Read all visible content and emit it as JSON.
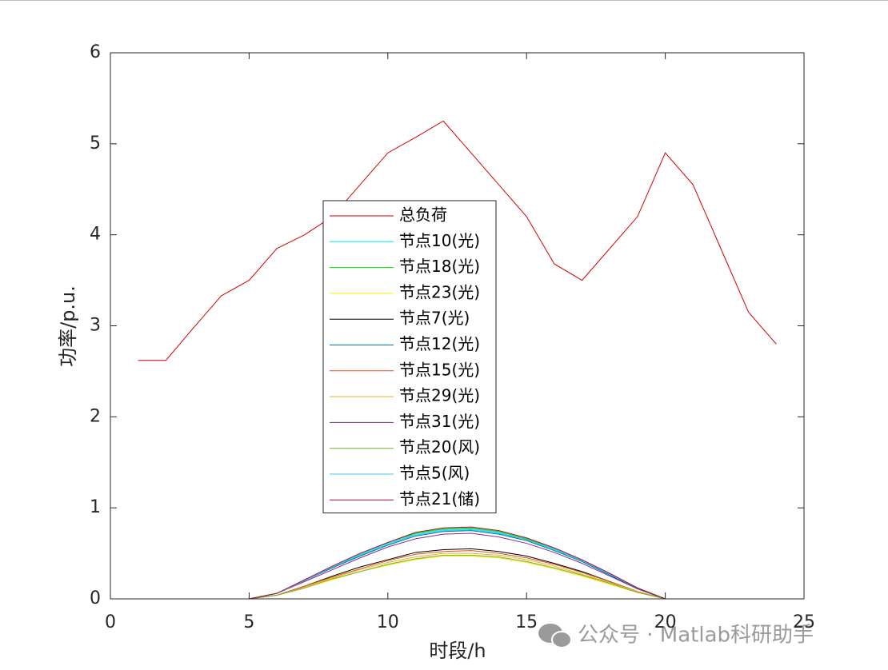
{
  "chart_data": {
    "type": "line",
    "xlabel": "时段/h",
    "ylabel": "功率/p.u.",
    "watermark": "公众号 · Matlab科研助手",
    "x": [
      1,
      2,
      3,
      4,
      5,
      6,
      7,
      8,
      9,
      10,
      11,
      12,
      13,
      14,
      15,
      16,
      17,
      18,
      19,
      20,
      21,
      22,
      23,
      24
    ],
    "xlim": [
      0,
      25
    ],
    "xticks": [
      0,
      5,
      10,
      15,
      20,
      25
    ],
    "ylim": [
      0,
      6
    ],
    "yticks": [
      0,
      1,
      2,
      3,
      4,
      5,
      6
    ],
    "series": [
      {
        "name": "总负荷",
        "color": "#d40000",
        "values": [
          2.62,
          2.62,
          2.98,
          3.33,
          3.5,
          3.85,
          4.0,
          4.2,
          4.55,
          4.9,
          5.07,
          5.25,
          4.9,
          4.55,
          4.2,
          3.68,
          3.5,
          3.85,
          4.2,
          4.9,
          4.55,
          3.85,
          3.15,
          2.8
        ]
      },
      {
        "name": "节点10(光)",
        "color": "#00e5e5",
        "values": [
          0,
          0,
          0,
          0,
          0,
          0.06,
          0.2,
          0.34,
          0.48,
          0.6,
          0.7,
          0.75,
          0.76,
          0.72,
          0.65,
          0.54,
          0.41,
          0.27,
          0.11,
          0,
          0,
          0,
          0,
          0
        ]
      },
      {
        "name": "节点18(光)",
        "color": "#00dd00",
        "values": [
          0,
          0,
          0,
          0,
          0,
          0.06,
          0.2,
          0.35,
          0.49,
          0.62,
          0.72,
          0.77,
          0.78,
          0.74,
          0.66,
          0.55,
          0.42,
          0.27,
          0.12,
          0,
          0,
          0,
          0,
          0
        ]
      },
      {
        "name": "节点23(光)",
        "color": "#f0f000",
        "values": [
          0,
          0,
          0,
          0,
          0,
          0.04,
          0.12,
          0.21,
          0.3,
          0.37,
          0.43,
          0.47,
          0.47,
          0.45,
          0.4,
          0.33,
          0.25,
          0.16,
          0.07,
          0,
          0,
          0,
          0,
          0
        ]
      },
      {
        "name": "节点7(光)",
        "color": "#000000",
        "values": [
          0,
          0,
          0,
          0,
          0,
          0.04,
          0.14,
          0.25,
          0.35,
          0.43,
          0.51,
          0.54,
          0.55,
          0.52,
          0.47,
          0.39,
          0.3,
          0.19,
          0.08,
          0,
          0,
          0,
          0,
          0
        ]
      },
      {
        "name": "节点12(光)",
        "color": "#0072bd",
        "values": [
          0,
          0,
          0,
          0,
          0,
          0.06,
          0.2,
          0.34,
          0.47,
          0.59,
          0.69,
          0.74,
          0.75,
          0.71,
          0.64,
          0.53,
          0.41,
          0.26,
          0.11,
          0,
          0,
          0,
          0,
          0
        ]
      },
      {
        "name": "节点15(光)",
        "color": "#d95319",
        "values": [
          0,
          0,
          0,
          0,
          0,
          0.04,
          0.14,
          0.24,
          0.33,
          0.42,
          0.49,
          0.52,
          0.53,
          0.5,
          0.45,
          0.38,
          0.29,
          0.19,
          0.08,
          0,
          0,
          0,
          0,
          0
        ]
      },
      {
        "name": "节点29(光)",
        "color": "#edb120",
        "values": [
          0,
          0,
          0,
          0,
          0,
          0.04,
          0.13,
          0.23,
          0.32,
          0.4,
          0.46,
          0.5,
          0.5,
          0.48,
          0.43,
          0.36,
          0.27,
          0.18,
          0.08,
          0,
          0,
          0,
          0,
          0
        ]
      },
      {
        "name": "节点31(光)",
        "color": "#7e2f8e",
        "values": [
          0,
          0,
          0,
          0,
          0,
          0.06,
          0.19,
          0.32,
          0.45,
          0.57,
          0.66,
          0.71,
          0.72,
          0.68,
          0.61,
          0.51,
          0.39,
          0.25,
          0.11,
          0,
          0,
          0,
          0,
          0
        ]
      },
      {
        "name": "节点20(风)",
        "color": "#77ac30",
        "values": [
          0,
          0,
          0,
          0,
          0,
          0.04,
          0.12,
          0.22,
          0.3,
          0.38,
          0.44,
          0.48,
          0.48,
          0.46,
          0.41,
          0.34,
          0.26,
          0.17,
          0.07,
          0,
          0,
          0,
          0,
          0
        ]
      },
      {
        "name": "节点5(风)",
        "color": "#4dbeee",
        "values": [
          0,
          0,
          0,
          0,
          0,
          0.06,
          0.2,
          0.35,
          0.49,
          0.61,
          0.71,
          0.76,
          0.77,
          0.73,
          0.65,
          0.55,
          0.42,
          0.27,
          0.12,
          0,
          0,
          0,
          0,
          0
        ]
      },
      {
        "name": "节点21(储)",
        "color": "#a2142f",
        "values": [
          0,
          0,
          0,
          0,
          0,
          0.06,
          0.21,
          0.36,
          0.5,
          0.62,
          0.73,
          0.78,
          0.79,
          0.75,
          0.67,
          0.56,
          0.43,
          0.28,
          0.12,
          0,
          0,
          0,
          0,
          0
        ]
      }
    ]
  }
}
